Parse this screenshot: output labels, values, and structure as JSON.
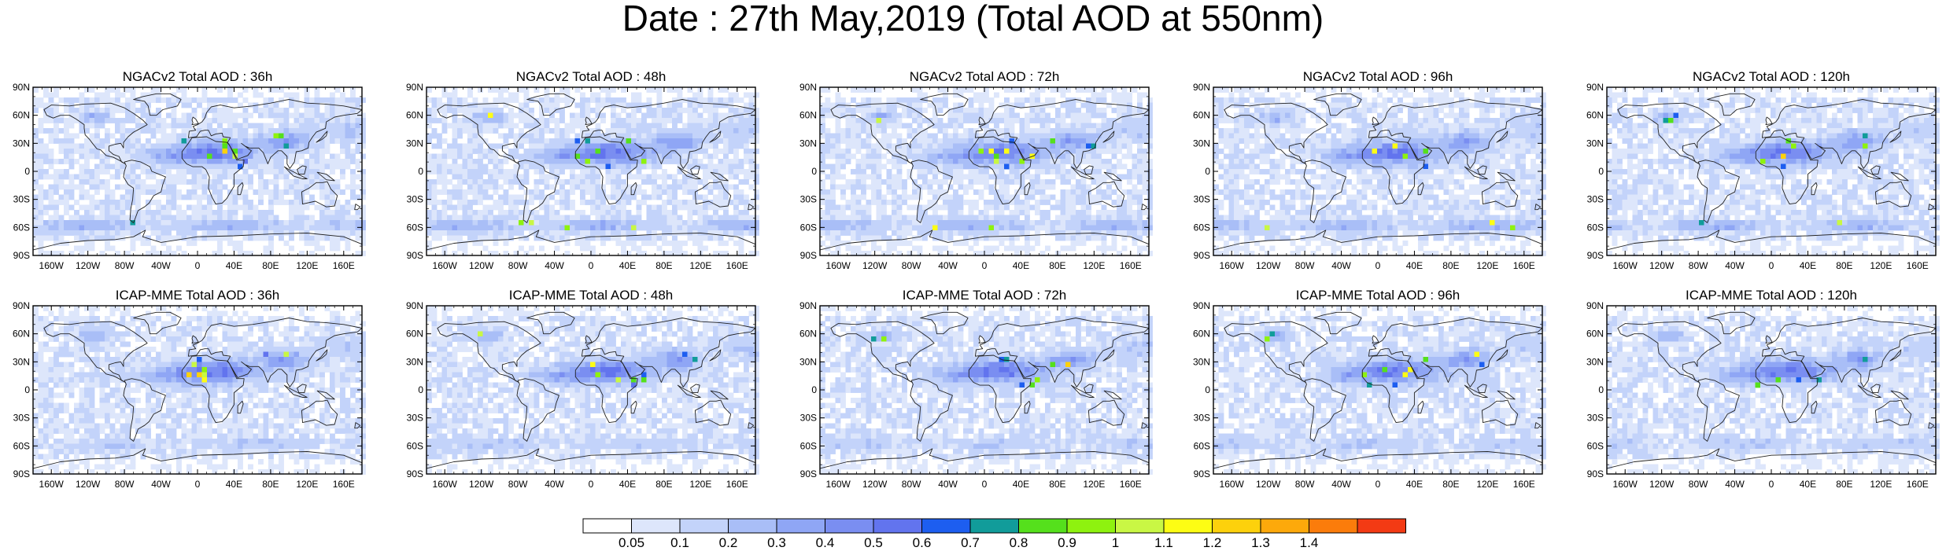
{
  "title": "Date : 27th May,2019 (Total AOD at 550nm)",
  "panels": [
    {
      "title": "NGACv2 Total AOD : 36h"
    },
    {
      "title": "NGACv2 Total AOD : 48h"
    },
    {
      "title": "NGACv2 Total AOD : 72h"
    },
    {
      "title": "NGACv2 Total AOD : 96h"
    },
    {
      "title": "NGACv2 Total AOD : 120h"
    },
    {
      "title": "ICAP-MME Total AOD : 36h"
    },
    {
      "title": "ICAP-MME Total AOD : 48h"
    },
    {
      "title": "ICAP-MME Total AOD : 72h"
    },
    {
      "title": "ICAP-MME Total AOD : 96h"
    },
    {
      "title": "ICAP-MME Total AOD : 120h"
    }
  ],
  "lat_ticks": [
    "90N",
    "60N",
    "30N",
    "0",
    "30S",
    "60S",
    "90S"
  ],
  "lon_ticks": [
    "160W",
    "120W",
    "80W",
    "40W",
    "0",
    "40E",
    "80E",
    "120E",
    "160E"
  ],
  "colorbar": {
    "labels": [
      "0.05",
      "0.1",
      "0.2",
      "0.3",
      "0.4",
      "0.5",
      "0.6",
      "0.7",
      "0.8",
      "0.9",
      "1",
      "1.1",
      "1.2",
      "1.3",
      "1.4"
    ],
    "colors": [
      "#ffffff",
      "#dde6fb",
      "#c3d3fa",
      "#a9bef7",
      "#8fa6f5",
      "#7a8ef1",
      "#6274ee",
      "#1d5ef0",
      "#119c9a",
      "#55e01c",
      "#8ef20f",
      "#c9f744",
      "#fdfd14",
      "#fdd10c",
      "#fda90b",
      "#fb7c0b",
      "#f33a14"
    ]
  }
}
